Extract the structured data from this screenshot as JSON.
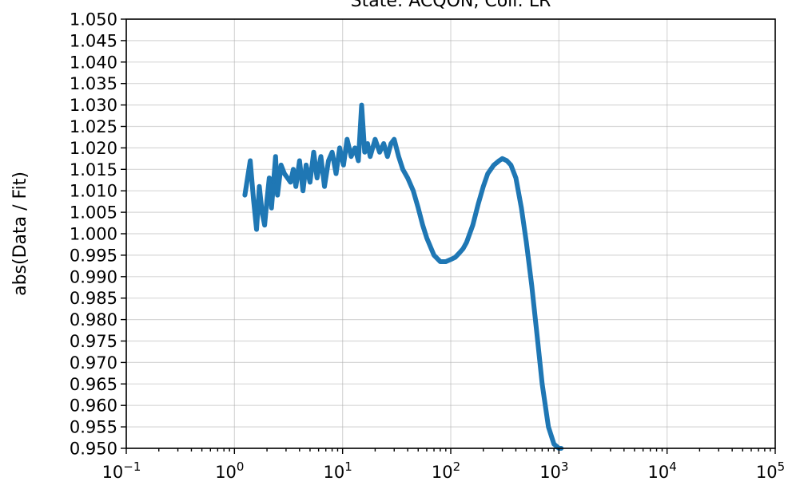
{
  "chart_data": {
    "type": "line",
    "title": "State: ACQON, Coll: LR",
    "xlabel": "",
    "ylabel": "abs(Data / Fit)",
    "xscale": "log",
    "xlim": [
      0.1,
      100000
    ],
    "ylim": [
      0.95,
      1.05
    ],
    "grid": true,
    "xticks": [
      {
        "base": "10",
        "exp": "−1"
      },
      {
        "base": "10",
        "exp": "0"
      },
      {
        "base": "10",
        "exp": "1"
      },
      {
        "base": "10",
        "exp": "2"
      },
      {
        "base": "10",
        "exp": "3"
      },
      {
        "base": "10",
        "exp": "4"
      },
      {
        "base": "10",
        "exp": "5"
      }
    ],
    "yticks": [
      "0.950",
      "0.955",
      "0.960",
      "0.965",
      "0.970",
      "0.975",
      "0.980",
      "0.985",
      "0.990",
      "0.995",
      "1.000",
      "1.005",
      "1.010",
      "1.015",
      "1.020",
      "1.025",
      "1.030",
      "1.035",
      "1.040",
      "1.045",
      "1.050"
    ],
    "series": [
      {
        "color": "#1f77b4",
        "x": [
          1.25,
          1.4,
          1.5,
          1.6,
          1.7,
          1.8,
          1.9,
          2.0,
          2.1,
          2.2,
          2.3,
          2.4,
          2.5,
          2.7,
          2.9,
          3.1,
          3.3,
          3.5,
          3.7,
          4.0,
          4.3,
          4.6,
          5.0,
          5.4,
          5.8,
          6.3,
          6.8,
          7.4,
          8.0,
          8.7,
          9.4,
          10.2,
          11,
          12,
          13,
          14,
          15,
          16,
          17,
          18,
          20,
          22,
          24,
          26,
          28,
          30,
          33,
          36,
          40,
          45,
          50,
          55,
          60,
          70,
          80,
          90,
          100,
          110,
          120,
          130,
          140,
          160,
          180,
          200,
          220,
          250,
          280,
          300,
          330,
          360,
          400,
          450,
          500,
          560,
          630,
          700,
          800,
          900,
          1000,
          1050
        ],
        "y": [
          1.009,
          1.017,
          1.008,
          1.001,
          1.011,
          1.005,
          1.002,
          1.008,
          1.013,
          1.006,
          1.012,
          1.018,
          1.009,
          1.016,
          1.014,
          1.013,
          1.012,
          1.015,
          1.011,
          1.017,
          1.01,
          1.016,
          1.012,
          1.019,
          1.013,
          1.018,
          1.011,
          1.017,
          1.019,
          1.014,
          1.02,
          1.016,
          1.022,
          1.018,
          1.02,
          1.017,
          1.03,
          1.019,
          1.021,
          1.018,
          1.022,
          1.019,
          1.021,
          1.018,
          1.021,
          1.022,
          1.018,
          1.015,
          1.013,
          1.01,
          1.006,
          1.002,
          0.999,
          0.995,
          0.9935,
          0.9935,
          0.994,
          0.9945,
          0.9955,
          0.9965,
          0.998,
          1.002,
          1.007,
          1.011,
          1.014,
          1.016,
          1.017,
          1.0175,
          1.017,
          1.016,
          1.013,
          1.006,
          0.998,
          0.988,
          0.976,
          0.965,
          0.955,
          0.951,
          0.95,
          0.95
        ]
      }
    ]
  }
}
